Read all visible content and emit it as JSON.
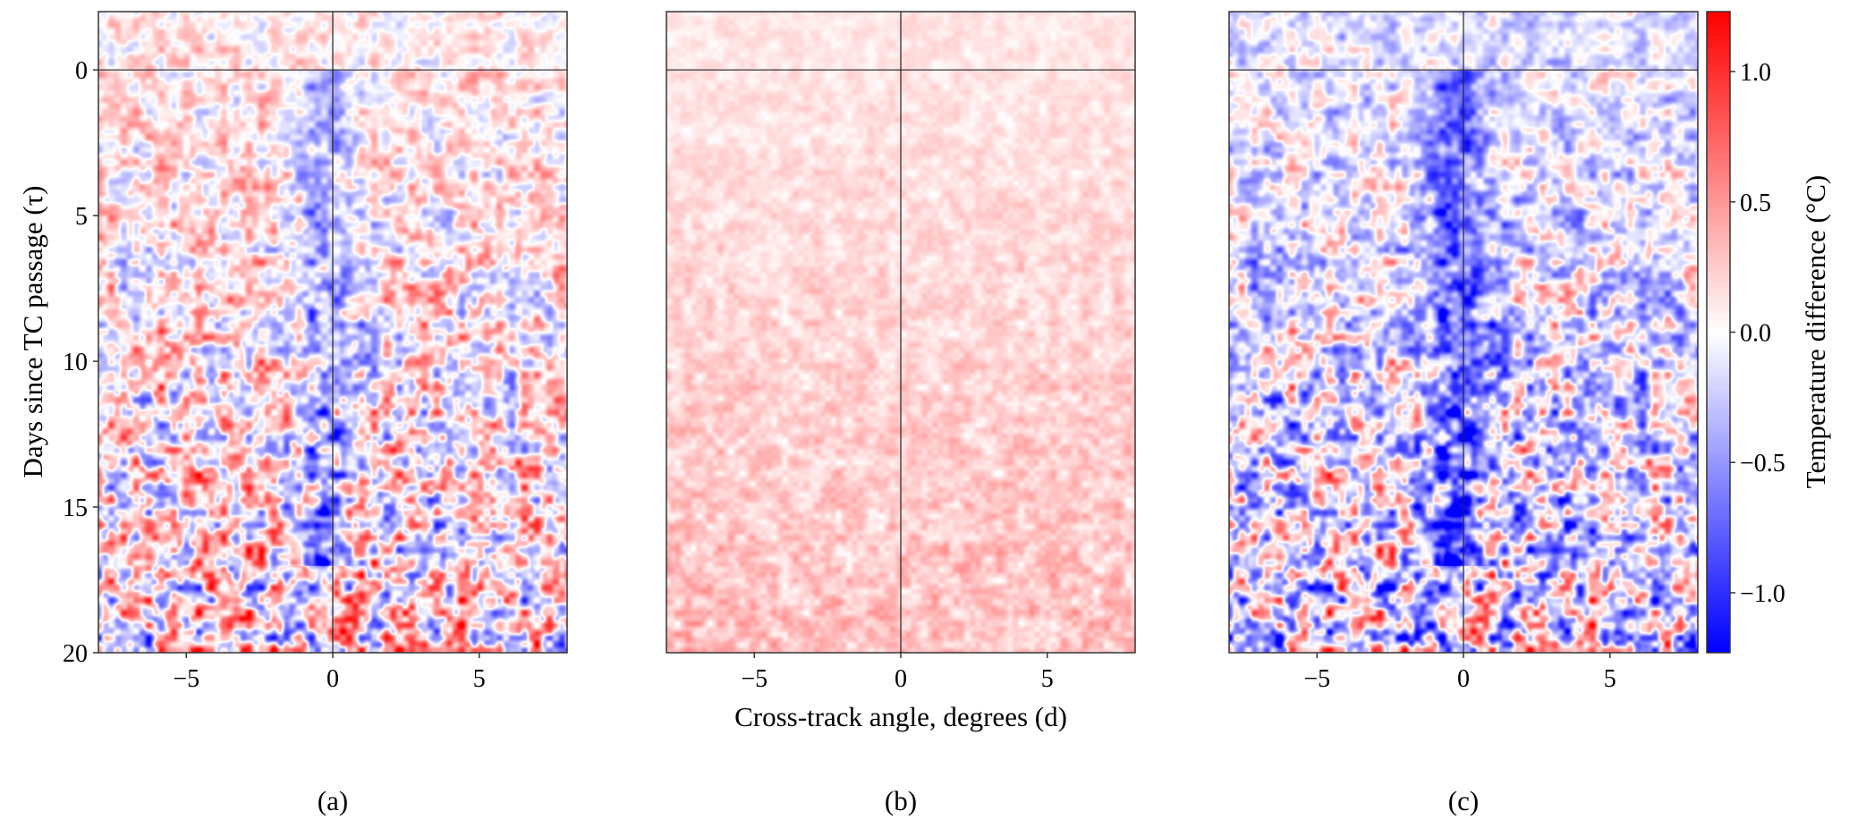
{
  "chart_data": [
    {
      "type": "heatmap",
      "panel_label": "(a)",
      "xlabel": "",
      "ylabel": "Days since TC passage (τ)",
      "xlim": [
        -8,
        8
      ],
      "ylim": [
        20,
        -2
      ],
      "xticks": [
        -5,
        0,
        5
      ],
      "xtick_labels": [
        "−5",
        "0",
        "5"
      ],
      "yticks": [
        0,
        5,
        10,
        15,
        20
      ],
      "ytick_labels": [
        "0",
        "5",
        "10",
        "15",
        "20"
      ],
      "reference_lines": {
        "x": 0,
        "y": 0
      },
      "pattern": "strong noise, cold anomaly along d≈0 after τ=0, amplitude grows with τ"
    },
    {
      "type": "heatmap",
      "panel_label": "(b)",
      "xlabel": "Cross-track angle, degrees (d)",
      "ylabel": "",
      "xlim": [
        -8,
        8
      ],
      "ylim": [
        20,
        -2
      ],
      "xticks": [
        -5,
        0,
        5
      ],
      "xtick_labels": [
        "−5",
        "0",
        "5"
      ],
      "reference_lines": {
        "x": 0,
        "y": 0
      },
      "pattern": "weak, mostly positive anomaly, increasing with τ"
    },
    {
      "type": "heatmap",
      "panel_label": "(c)",
      "xlabel": "",
      "ylabel": "",
      "xlim": [
        -8,
        8
      ],
      "ylim": [
        20,
        -2
      ],
      "xticks": [
        -5,
        0,
        5
      ],
      "xtick_labels": [
        "−5",
        "0",
        "5"
      ],
      "reference_lines": {
        "x": 0,
        "y": 0
      },
      "pattern": "similar to (a) with stronger cold anomalies"
    }
  ],
  "colorbar": {
    "label": "Temperature difference (°C)",
    "colormap": "bwr",
    "vmin": -1.23,
    "vmax": 1.23,
    "ticks": [
      1.0,
      0.5,
      0.0,
      -0.5,
      -1.0
    ],
    "tick_labels": [
      "1.0",
      "0.5",
      "0.0",
      "−0.5",
      "−1.0"
    ],
    "colors": {
      "low": "#0000ff",
      "mid": "#ffffff",
      "high": "#ff0000"
    }
  }
}
